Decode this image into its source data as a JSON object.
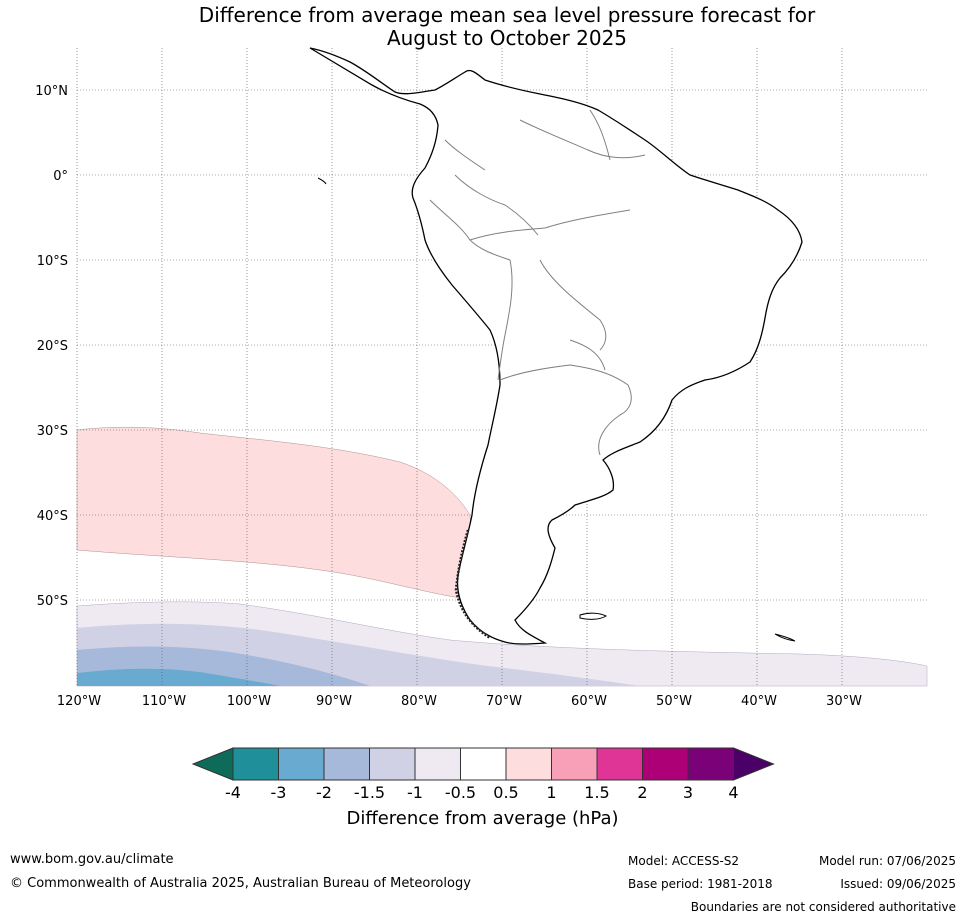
{
  "title": {
    "line1": "Difference from average mean sea level pressure forecast for",
    "line2": "August to October 2025"
  },
  "map": {
    "lat_labels": [
      "10°N",
      "0°",
      "10°S",
      "20°S",
      "30°S",
      "40°S",
      "50°S"
    ],
    "lon_labels": [
      "120°W",
      "110°W",
      "100°W",
      "90°W",
      "80°W",
      "70°W",
      "60°W",
      "50°W",
      "40°W",
      "30°W"
    ],
    "colors": {
      "coast": "#000000",
      "borders": "#808080",
      "grid": "#555555"
    }
  },
  "colorbar": {
    "ticks": [
      "-4",
      "-3",
      "-2",
      "-1.5",
      "-1",
      "-0.5",
      "0.5",
      "1",
      "1.5",
      "2",
      "3",
      "4"
    ],
    "colors": [
      "#0e6b5a",
      "#1f9099",
      "#69aad0",
      "#a7b9da",
      "#d1d1e6",
      "#efeaf2",
      "#ffffff",
      "#fddddd",
      "#f9a0b9",
      "#df3597",
      "#ad0077",
      "#7a0178",
      "#4a0067"
    ],
    "label": "Difference from average (hPa)"
  },
  "chart_data": {
    "type": "heatmap",
    "title": "Difference from average mean sea level pressure forecast for August to October 2025",
    "units": "hPa",
    "xlim": [
      "120°W",
      "20°W"
    ],
    "ylim": [
      "60°S",
      "15°N"
    ],
    "levels": [
      -4,
      -3,
      -2,
      -1.5,
      -1,
      -0.5,
      0.5,
      1,
      1.5,
      2,
      3,
      4
    ],
    "regions": [
      {
        "range": "0.5 to 1",
        "area": "South-east Pacific, approx. 30°S–50°S, 120°W–75°W"
      },
      {
        "range": "-1 to -0.5",
        "area": "Southern Ocean south of approx. 50°S, 120°W–20°W"
      },
      {
        "range": "-1.5 to -1",
        "area": "Southern Ocean south of approx. 53°S, 120°W–60°W"
      },
      {
        "range": "-2 to -1.5",
        "area": "Southern Ocean south of approx. 55°S, 120°W–85°W"
      },
      {
        "range": "-3 to -2",
        "area": "Southern Ocean south of approx. 58°S, 120°W–95°W"
      }
    ]
  },
  "footer": {
    "url": "www.bom.gov.au/climate",
    "copyright": "© Commonwealth of Australia 2025, Australian Bureau of Meteorology",
    "model": "Model: ACCESS-S2",
    "base_period": "Base period: 1981-2018",
    "model_run": "Model run: 07/06/2025",
    "issued": "Issued: 09/06/2025",
    "disclaimer": "Boundaries are not considered authoritative"
  }
}
